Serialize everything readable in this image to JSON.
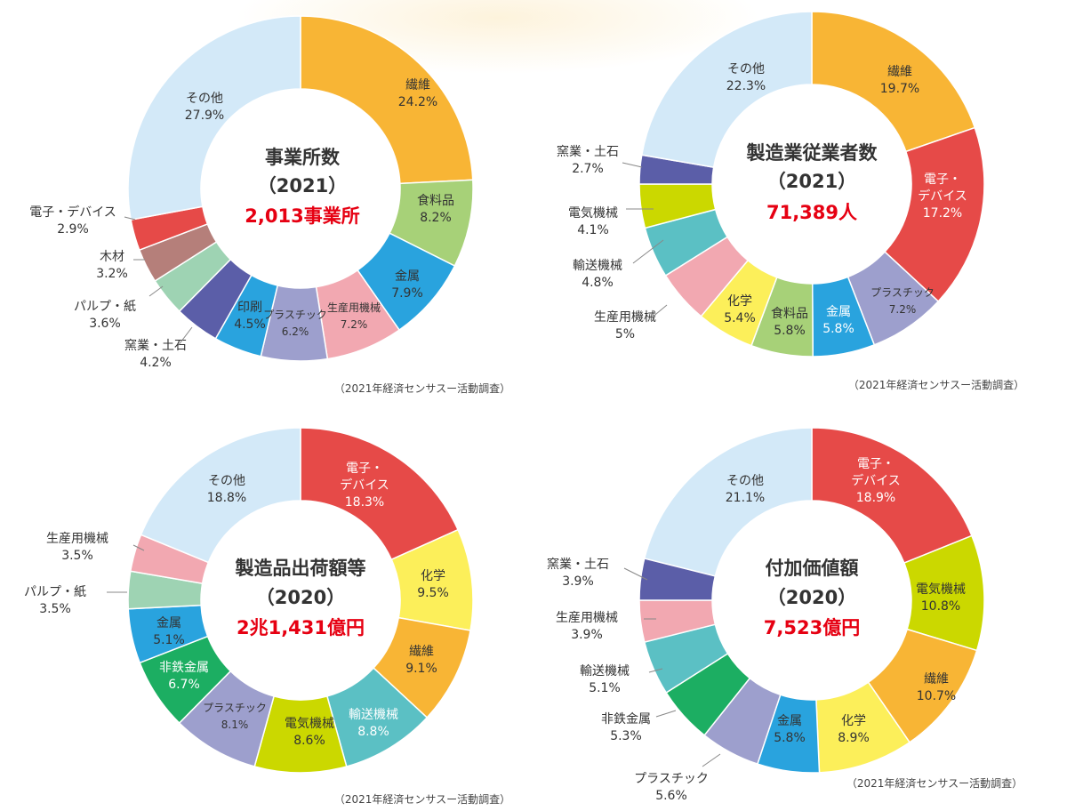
{
  "chart_data": [
    {
      "type": "pie",
      "variant": "donut",
      "title": "事業所数",
      "year": "（2021）",
      "total": "2,013事業所",
      "source": "（2021年経済センサスー活動調査）",
      "slices": [
        {
          "label": "繊維",
          "value": 24.2,
          "pct": "24.2%",
          "color": "#f8b535"
        },
        {
          "label": "食料品",
          "value": 8.2,
          "pct": "8.2%",
          "color": "#a7d178"
        },
        {
          "label": "金属",
          "value": 7.9,
          "pct": "7.9%",
          "color": "#29a3de"
        },
        {
          "label": "生産用機械",
          "value": 7.2,
          "pct": "7.2%",
          "color": "#f2a8b1"
        },
        {
          "label": "プラスチック",
          "value": 6.2,
          "pct": "6.2%",
          "color": "#9d9fcd"
        },
        {
          "label": "印刷",
          "value": 4.5,
          "pct": "4.5%",
          "color": "#29a3de"
        },
        {
          "label": "窯業・土石",
          "value": 4.2,
          "pct": "4.2%",
          "color": "#5b5ea8"
        },
        {
          "label": "パルプ・紙",
          "value": 3.6,
          "pct": "3.6%",
          "color": "#9ed3b3"
        },
        {
          "label": "木材",
          "value": 3.2,
          "pct": "3.2%",
          "color": "#b57f7a"
        },
        {
          "label": "電子・デバイス",
          "value": 2.9,
          "pct": "2.9%",
          "color": "#e64a48"
        },
        {
          "label": "その他",
          "value": 27.9,
          "pct": "27.9%",
          "color": "#d3e9f8"
        }
      ]
    },
    {
      "type": "pie",
      "variant": "donut",
      "title": "製造業従業者数",
      "year": "（2021）",
      "total": "71,389人",
      "source": "（2021年経済センサスー活動調査）",
      "slices": [
        {
          "label": "繊維",
          "value": 19.7,
          "pct": "19.7%",
          "color": "#f8b535"
        },
        {
          "label": "電子・デバイス",
          "value": 17.2,
          "pct": "17.2%",
          "color": "#e64a48"
        },
        {
          "label": "プラスチック",
          "value": 7.2,
          "pct": "7.2%",
          "color": "#9d9fcd"
        },
        {
          "label": "金属",
          "value": 5.8,
          "pct": "5.8%",
          "color": "#29a3de"
        },
        {
          "label": "食料品",
          "value": 5.8,
          "pct": "5.8%",
          "color": "#a7d178"
        },
        {
          "label": "化学",
          "value": 5.4,
          "pct": "5.4%",
          "color": "#fcef5a"
        },
        {
          "label": "生産用機械",
          "value": 5.0,
          "pct": "5%",
          "color": "#f2a8b1"
        },
        {
          "label": "輸送機械",
          "value": 4.8,
          "pct": "4.8%",
          "color": "#5bc0c4"
        },
        {
          "label": "電気機械",
          "value": 4.1,
          "pct": "4.1%",
          "color": "#cbd800"
        },
        {
          "label": "窯業・土石",
          "value": 2.7,
          "pct": "2.7%",
          "color": "#5b5ea8"
        },
        {
          "label": "その他",
          "value": 22.3,
          "pct": "22.3%",
          "color": "#d3e9f8"
        }
      ]
    },
    {
      "type": "pie",
      "variant": "donut",
      "title": "製造品出荷額等",
      "year": "（2020）",
      "total": "2兆1,431億円",
      "source": "（2021年経済センサスー活動調査）",
      "slices": [
        {
          "label": "電子・デバイス",
          "value": 18.3,
          "pct": "18.3%",
          "color": "#e64a48"
        },
        {
          "label": "化学",
          "value": 9.5,
          "pct": "9.5%",
          "color": "#fcef5a"
        },
        {
          "label": "繊維",
          "value": 9.1,
          "pct": "9.1%",
          "color": "#f8b535"
        },
        {
          "label": "輸送機械",
          "value": 8.8,
          "pct": "8.8%",
          "color": "#5bc0c4"
        },
        {
          "label": "電気機械",
          "value": 8.6,
          "pct": "8.6%",
          "color": "#cbd800"
        },
        {
          "label": "プラスチック",
          "value": 8.1,
          "pct": "8.1%",
          "color": "#9d9fcd"
        },
        {
          "label": "非鉄金属",
          "value": 6.7,
          "pct": "6.7%",
          "color": "#1cae62"
        },
        {
          "label": "金属",
          "value": 5.1,
          "pct": "5.1%",
          "color": "#29a3de"
        },
        {
          "label": "パルプ・紙",
          "value": 3.5,
          "pct": "3.5%",
          "color": "#9ed3b3"
        },
        {
          "label": "生産用機械",
          "value": 3.5,
          "pct": "3.5%",
          "color": "#f2a8b1"
        },
        {
          "label": "その他",
          "value": 18.8,
          "pct": "18.8%",
          "color": "#d3e9f8"
        }
      ]
    },
    {
      "type": "pie",
      "variant": "donut",
      "title": "付加価値額",
      "year": "（2020）",
      "total": "7,523億円",
      "source": "（2021年経済センサスー活動調査）",
      "slices": [
        {
          "label": "電子・デバイス",
          "value": 18.9,
          "pct": "18.9%",
          "color": "#e64a48"
        },
        {
          "label": "電気機械",
          "value": 10.8,
          "pct": "10.8%",
          "color": "#cbd800"
        },
        {
          "label": "繊維",
          "value": 10.7,
          "pct": "10.7%",
          "color": "#f8b535"
        },
        {
          "label": "化学",
          "value": 8.9,
          "pct": "8.9%",
          "color": "#fcef5a"
        },
        {
          "label": "金属",
          "value": 5.8,
          "pct": "5.8%",
          "color": "#29a3de"
        },
        {
          "label": "プラスチック",
          "value": 5.6,
          "pct": "5.6%",
          "color": "#9d9fcd"
        },
        {
          "label": "非鉄金属",
          "value": 5.3,
          "pct": "5.3%",
          "color": "#1cae62"
        },
        {
          "label": "輸送機械",
          "value": 5.1,
          "pct": "5.1%",
          "color": "#5bc0c4"
        },
        {
          "label": "生産用機械",
          "value": 3.9,
          "pct": "3.9%",
          "color": "#f2a8b1"
        },
        {
          "label": "窯業・土石",
          "value": 3.9,
          "pct": "3.9%",
          "color": "#5b5ea8"
        },
        {
          "label": "その他",
          "value": 21.1,
          "pct": "21.1%",
          "color": "#d3e9f8"
        }
      ]
    }
  ]
}
